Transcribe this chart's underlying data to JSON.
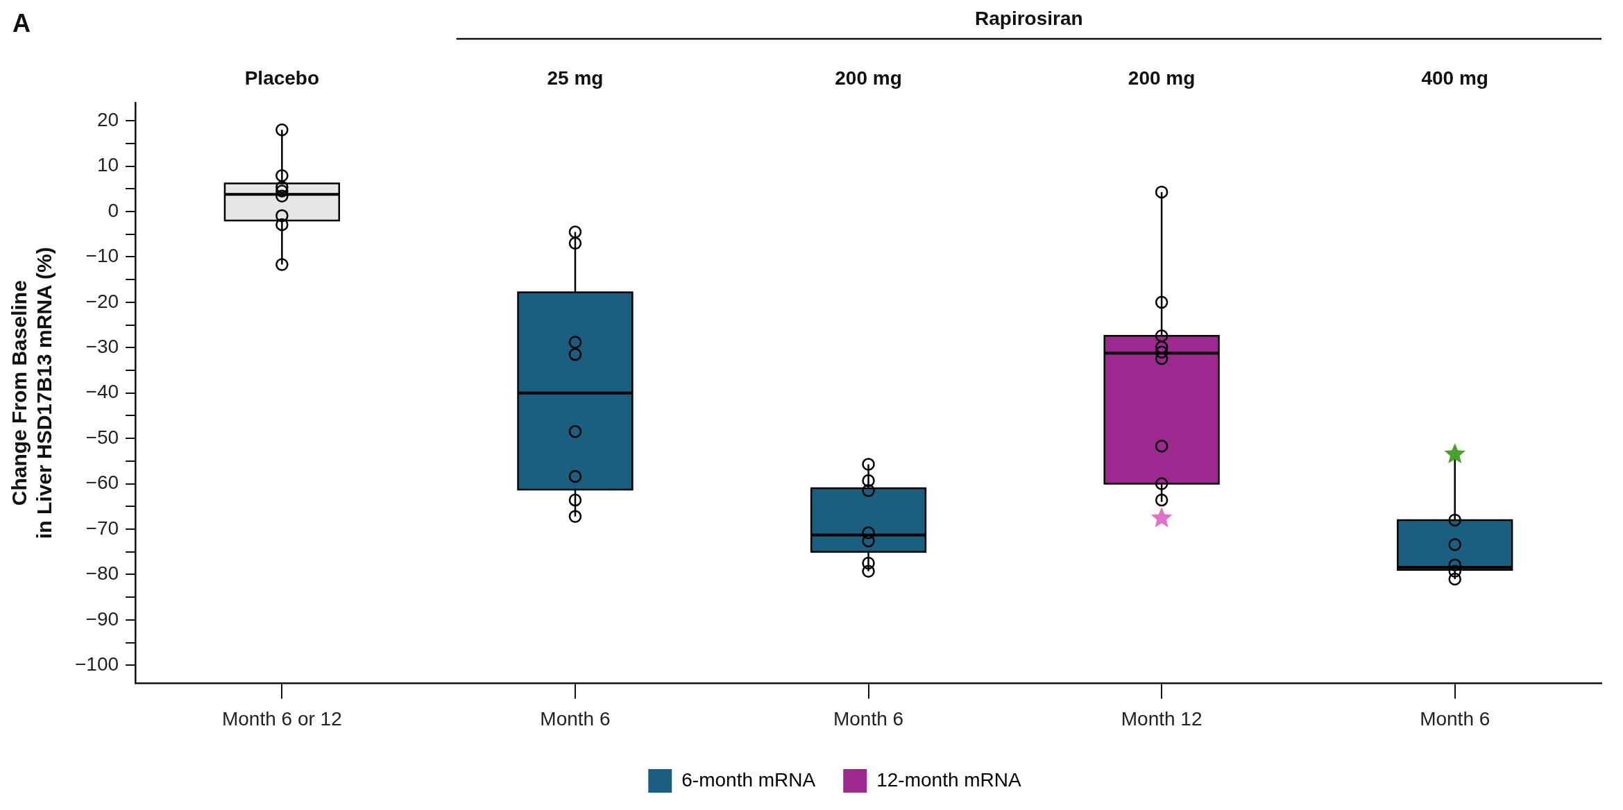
{
  "chart_data": {
    "type": "box",
    "ylabel": "Change From Baseline\nin Liver HSD17B13 mRNA (%)",
    "annotations": [
      "A",
      "Rapirosiran",
      "Placebo",
      "25 mg",
      "200 mg",
      "200 mg",
      "400 mg"
    ],
    "categories": [
      "Month 6 or 12",
      "Month 6",
      "Month 6",
      "Month 12",
      "Month 6"
    ],
    "ylim": [
      -104,
      24
    ],
    "yticks": [
      20,
      {
        "value": 15,
        "label": null
      },
      10,
      {
        "value": 5,
        "label": null
      },
      0,
      {
        "value": -5,
        "label": null
      },
      -10,
      {
        "value": -15,
        "label": null
      },
      -20,
      {
        "value": -25,
        "label": null
      },
      -30,
      {
        "value": -35,
        "label": null
      },
      -40,
      {
        "value": -45,
        "label": null
      },
      -50,
      {
        "value": -55,
        "label": null
      },
      -60,
      {
        "value": -65,
        "label": null
      },
      -70,
      {
        "value": -75,
        "label": null
      },
      -80,
      {
        "value": -85,
        "label": null
      },
      -90,
      {
        "value": -95,
        "label": null
      },
      -100
    ],
    "grid": false,
    "legend": "bottom",
    "series": [
      {
        "type": "box",
        "color": "#e6e6e6",
        "boxes": [
          {
            "low": -11.7,
            "q1": -2,
            "median": 3.8,
            "q3": 6.2,
            "high": 18
          },
          null,
          null,
          null,
          null
        ]
      },
      {
        "type": "box",
        "name": "6-month mRNA",
        "color": "#1a5e80",
        "boxes": [
          null,
          {
            "low": -67.2,
            "q1": -61.3,
            "median": -40,
            "q3": -17.8,
            "high": -4.5
          },
          {
            "low": -79.3,
            "q1": -75,
            "median": -71.3,
            "q3": -61,
            "high": -55.7
          },
          null,
          {
            "low": -81,
            "q1": -79,
            "median": -78.4,
            "q3": -68,
            "high": -53.5
          }
        ]
      },
      {
        "type": "box",
        "name": "12-month mRNA",
        "color": "#9c2a8e",
        "boxes": [
          null,
          null,
          null,
          {
            "low": -64,
            "q1": -60,
            "median": -31.2,
            "q3": -27.4,
            "high": 4.3
          },
          null
        ]
      },
      {
        "type": "scatter",
        "marker": "circle",
        "color": "#000000",
        "values": [
          18,
          -4.5,
          -55.7,
          4.3,
          -68
        ]
      },
      {
        "type": "scatter",
        "marker": "circle",
        "color": "#000000",
        "values": [
          7.9,
          -7,
          -59.3,
          -20,
          -73.4
        ]
      },
      {
        "type": "scatter",
        "marker": "circle",
        "color": "#000000",
        "values": [
          5.4,
          -28.8,
          -61.5,
          -27.4,
          -77.9
        ]
      },
      {
        "type": "scatter",
        "marker": "circle",
        "color": "#000000",
        "values": [
          4.5,
          -31.5,
          -70.8,
          -29.9,
          -79.3
        ]
      },
      {
        "type": "scatter",
        "marker": "circle",
        "color": "#000000",
        "values": [
          3.4,
          -48.5,
          -72.6,
          -31,
          -81
        ]
      },
      {
        "type": "scatter",
        "marker": "circle",
        "color": "#000000",
        "values": [
          -0.9,
          -58.4,
          -77.5,
          -32.4,
          null
        ]
      },
      {
        "type": "scatter",
        "marker": "circle",
        "color": "#000000",
        "values": [
          -2.9,
          -63.6,
          -79.3,
          -51.7,
          null
        ]
      },
      {
        "type": "scatter",
        "marker": "circle",
        "color": "#000000",
        "values": [
          -11.7,
          -67.2,
          null,
          -60,
          null
        ]
      },
      {
        "type": "scatter",
        "marker": "circle",
        "color": "#000000",
        "values": [
          null,
          null,
          null,
          -63.6,
          null
        ]
      },
      {
        "type": "scatter",
        "marker": "star",
        "colors": [
          null,
          null,
          null,
          "#e070c8",
          "#4aa02c"
        ],
        "values": [
          null,
          null,
          null,
          -67.6,
          -53.5
        ]
      }
    ]
  }
}
